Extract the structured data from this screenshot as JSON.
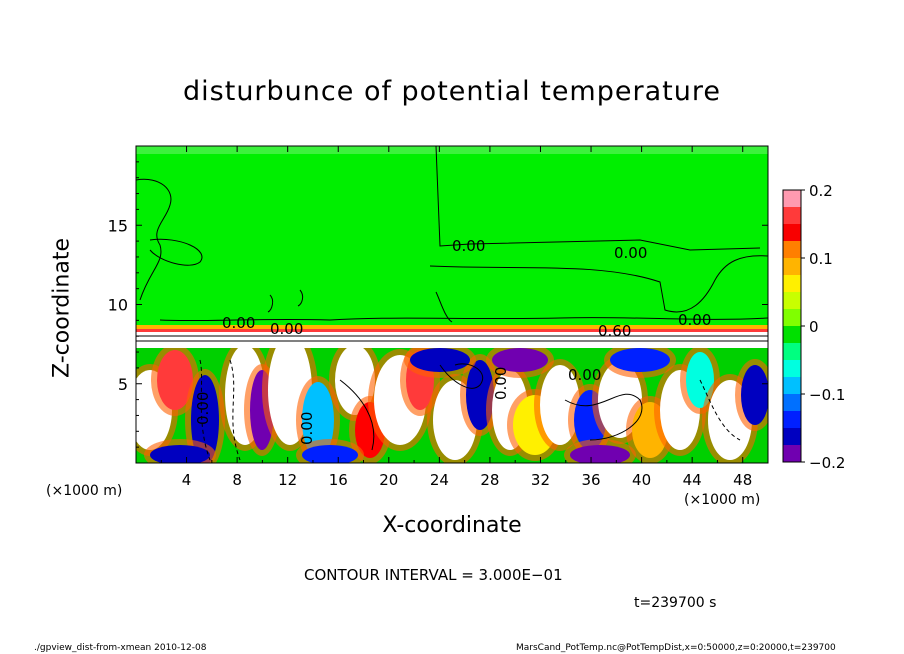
{
  "chart_data": {
    "type": "heatmap",
    "title": "disturbunce of potential temperature",
    "xlabel": "X-coordinate",
    "ylabel": "Z-coordinate",
    "x_unit": "(×1000 m)",
    "xlim": [
      0,
      50
    ],
    "ylim": [
      0,
      20
    ],
    "x_ticks": [
      4,
      8,
      12,
      16,
      20,
      24,
      28,
      32,
      36,
      40,
      44,
      48
    ],
    "y_ticks": [
      5,
      10,
      15
    ],
    "colorbar": {
      "range": [
        -0.2,
        0.2
      ],
      "tick_labels": [
        "0.2",
        "0.1",
        "0",
        "−0.1",
        "−0.2"
      ],
      "tick_values": [
        0.2,
        0.1,
        0,
        -0.1,
        -0.2
      ],
      "colors": [
        "#ff9ab0",
        "#ff3a3a",
        "#f80000",
        "#ff7f00",
        "#ffb400",
        "#fff000",
        "#c8ff00",
        "#80ff00",
        "#00e000",
        "#00ff80",
        "#00ffe0",
        "#00c0ff",
        "#0070ff",
        "#0020ff",
        "#0000c0",
        "#7000b0"
      ]
    },
    "contour_labels": [
      "0.00",
      "0.00",
      "0.00",
      "0.00",
      "0.00",
      "0.60",
      "0.00",
      "0.00",
      "0.00",
      "0.00"
    ],
    "upper_region_value": 0.0,
    "lower_region": "convective layer with strong positive and negative disturbances"
  },
  "annotations": {
    "contour_interval": "CONTOUR INTERVAL = 3.000E−01",
    "time": "t=239700 s"
  },
  "footer": {
    "left": "./gpview_dist-from-xmean   2010-12-08",
    "right": "MarsCand_PotTemp.nc@PotTempDist,x=0:50000,z=0:20000,t=239700"
  }
}
